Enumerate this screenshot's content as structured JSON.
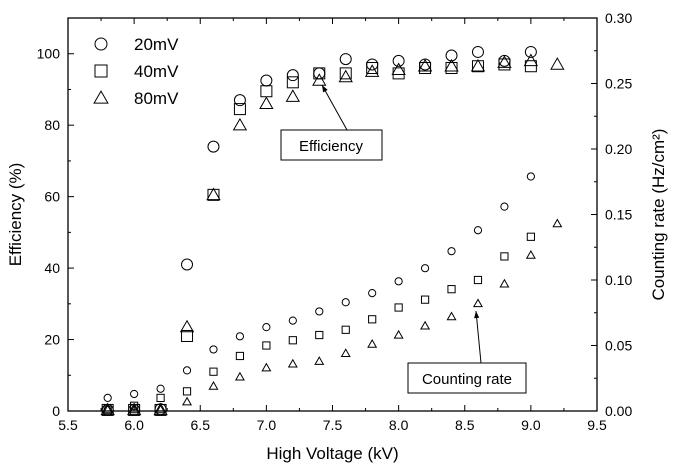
{
  "chart_data": {
    "type": "scatter",
    "title": "",
    "xlabel": "High Voltage (kV)",
    "ylabel": "Efficiency (%)",
    "y2label": "Counting rate (Hz/cm²)",
    "xlim": [
      5.5,
      9.5
    ],
    "ylim": [
      0,
      110
    ],
    "y2lim": [
      0,
      0.3
    ],
    "xticks": [
      "5.5",
      "6.0",
      "6.5",
      "7.0",
      "7.5",
      "8.0",
      "8.5",
      "9.0",
      "9.5"
    ],
    "yticks": [
      "0",
      "20",
      "40",
      "60",
      "80",
      "100"
    ],
    "y2ticks": [
      "0.00",
      "0.05",
      "0.10",
      "0.15",
      "0.20",
      "0.25",
      "0.30"
    ],
    "grid": false,
    "legend_position": "top-left",
    "annotations": [
      "Efficiency",
      "Counting rate"
    ],
    "series": [
      {
        "name": "20mV",
        "marker": "circle",
        "efficiency": {
          "x": [
            5.8,
            6.0,
            6.2,
            6.4,
            6.6,
            6.8,
            7.0,
            7.2,
            7.4,
            7.6,
            7.8,
            8.0,
            8.2,
            8.4,
            8.6,
            8.8,
            9.0
          ],
          "y": [
            0.3,
            0.3,
            0.5,
            41,
            74,
            87,
            92.5,
            94,
            94.5,
            98.5,
            97,
            98,
            97,
            99.5,
            100.5,
            98,
            100.5
          ]
        },
        "counting_rate": {
          "x": [
            5.8,
            6.0,
            6.2,
            6.4,
            6.6,
            6.8,
            7.0,
            7.2,
            7.4,
            7.6,
            7.8,
            8.0,
            8.2,
            8.4,
            8.6,
            8.8,
            9.0
          ],
          "y": [
            0.01,
            0.013,
            0.017,
            0.031,
            0.047,
            0.057,
            0.064,
            0.069,
            0.076,
            0.083,
            0.09,
            0.099,
            0.109,
            0.122,
            0.138,
            0.156,
            0.179
          ]
        }
      },
      {
        "name": "40mV",
        "marker": "square",
        "efficiency": {
          "x": [
            5.8,
            6.0,
            6.2,
            6.4,
            6.6,
            6.8,
            7.0,
            7.2,
            7.4,
            7.6,
            7.8,
            8.0,
            8.2,
            8.4,
            8.6,
            8.8,
            9.0
          ],
          "y": [
            0.3,
            0.3,
            0.3,
            21,
            60.5,
            84.5,
            89.5,
            92,
            94.5,
            94.5,
            96,
            94.5,
            96,
            96,
            96.5,
            97,
            96.5
          ]
        },
        "counting_rate": {
          "x": [
            5.8,
            6.0,
            6.2,
            6.4,
            6.6,
            6.8,
            7.0,
            7.2,
            7.4,
            7.6,
            7.8,
            8.0,
            8.2,
            8.4,
            8.6,
            8.8,
            9.0
          ],
          "y": [
            0.001,
            0.004,
            0.01,
            0.015,
            0.03,
            0.042,
            0.05,
            0.054,
            0.058,
            0.062,
            0.07,
            0.079,
            0.085,
            0.093,
            0.1,
            0.118,
            0.133
          ]
        }
      },
      {
        "name": "80mV",
        "marker": "triangle",
        "efficiency": {
          "x": [
            5.8,
            6.0,
            6.2,
            6.4,
            6.6,
            6.8,
            7.0,
            7.2,
            7.4,
            7.6,
            7.8,
            8.0,
            8.2,
            8.4,
            8.6,
            8.8,
            9.0,
            9.2
          ],
          "y": [
            0.3,
            0.3,
            0.3,
            23.5,
            60.5,
            80,
            86,
            88,
            92.5,
            93.5,
            95,
            95.5,
            96.5,
            96.5,
            96.5,
            97.5,
            98,
            97
          ]
        },
        "counting_rate": {
          "x": [
            5.8,
            6.0,
            6.2,
            6.4,
            6.6,
            6.8,
            7.0,
            7.2,
            7.4,
            7.6,
            7.8,
            8.0,
            8.2,
            8.4,
            8.6,
            8.8,
            9.0,
            9.2
          ],
          "y": [
            0.001,
            0.001,
            0.001,
            0.007,
            0.019,
            0.026,
            0.033,
            0.036,
            0.038,
            0.044,
            0.051,
            0.058,
            0.065,
            0.072,
            0.082,
            0.097,
            0.119,
            0.143
          ]
        }
      }
    ]
  }
}
